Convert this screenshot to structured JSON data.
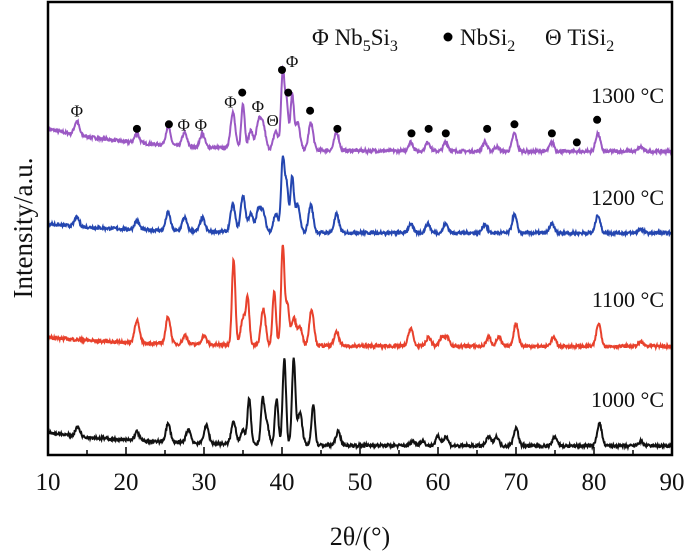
{
  "chart_data": {
    "type": "line",
    "title": "",
    "xlabel": "2θ/(°)",
    "ylabel": "Intensity/a.u.",
    "xlim": [
      10,
      90
    ],
    "ylim": [
      0,
      100
    ],
    "xticks": [
      "10",
      "20",
      "30",
      "40",
      "50",
      "60",
      "70",
      "80",
      "90"
    ],
    "grid": false,
    "legend": {
      "placement": "top-right",
      "entries": [
        {
          "symbol": "Φ",
          "label": "Nb5Si3",
          "base": "Nb",
          "sub1": "5",
          "mid": "Si",
          "sub2": "3"
        },
        {
          "symbol": "●",
          "label": "NbSi2",
          "base": "NbSi",
          "sub1": "2",
          "mid": "",
          "sub2": ""
        },
        {
          "symbol": "Θ",
          "label": "TiSi2",
          "base": "TiSi",
          "sub1": "2",
          "mid": "",
          "sub2": ""
        }
      ]
    },
    "series": [
      {
        "name": "1300 °C",
        "color": "#9b59c4",
        "offset": 67,
        "bg": 5,
        "peaks": [
          [
            13.7,
            3
          ],
          [
            21.4,
            2
          ],
          [
            25.4,
            4
          ],
          [
            27.5,
            3
          ],
          [
            29.8,
            3
          ],
          [
            33.7,
            8
          ],
          [
            35,
            10
          ],
          [
            36,
            4
          ],
          [
            37,
            6
          ],
          [
            37.6,
            5
          ],
          [
            39.2,
            4
          ],
          [
            40.1,
            17
          ],
          [
            40.6,
            10
          ],
          [
            41.3,
            12
          ],
          [
            42,
            6
          ],
          [
            43.7,
            6
          ],
          [
            47,
            4
          ],
          [
            56.5,
            2
          ],
          [
            58.7,
            2
          ],
          [
            61,
            2
          ],
          [
            66,
            2
          ],
          [
            67.5,
            1
          ],
          [
            69.8,
            4
          ],
          [
            74.6,
            2
          ],
          [
            80.5,
            4
          ],
          [
            86,
            1
          ]
        ]
      },
      {
        "name": "1200 °C",
        "color": "#2446b0",
        "offset": 49,
        "bg": 2,
        "peaks": [
          [
            13.7,
            2
          ],
          [
            21.4,
            2
          ],
          [
            25.4,
            4
          ],
          [
            27.5,
            3
          ],
          [
            29.8,
            3
          ],
          [
            33.7,
            6
          ],
          [
            35,
            8
          ],
          [
            36,
            4
          ],
          [
            37,
            5
          ],
          [
            37.6,
            4
          ],
          [
            39.2,
            4
          ],
          [
            40.1,
            16
          ],
          [
            40.6,
            10
          ],
          [
            41.3,
            12
          ],
          [
            42,
            6
          ],
          [
            43.7,
            6
          ],
          [
            47,
            4
          ],
          [
            56.5,
            2
          ],
          [
            58.7,
            2
          ],
          [
            61,
            2
          ],
          [
            66,
            2
          ],
          [
            69.8,
            4
          ],
          [
            74.6,
            2
          ],
          [
            80.5,
            4
          ],
          [
            86,
            1
          ]
        ]
      },
      {
        "name": "1100 °C",
        "color": "#e8412c",
        "offset": 24,
        "bg": 2,
        "peaks": [
          [
            21.4,
            5
          ],
          [
            25.4,
            6
          ],
          [
            27.6,
            2
          ],
          [
            30,
            2
          ],
          [
            33.8,
            19
          ],
          [
            35,
            6
          ],
          [
            35.6,
            10
          ],
          [
            37.6,
            8
          ],
          [
            39,
            12
          ],
          [
            40.1,
            22
          ],
          [
            40.7,
            9
          ],
          [
            41.5,
            6
          ],
          [
            42.3,
            4
          ],
          [
            43.8,
            8
          ],
          [
            47,
            3
          ],
          [
            56.5,
            4
          ],
          [
            58.8,
            2
          ],
          [
            60.5,
            2
          ],
          [
            61.2,
            2
          ],
          [
            66.5,
            2
          ],
          [
            67.8,
            2
          ],
          [
            70,
            5
          ],
          [
            74.8,
            2
          ],
          [
            80.6,
            5
          ],
          [
            86,
            1
          ]
        ]
      },
      {
        "name": "1000 °C",
        "color": "#111111",
        "offset": 2,
        "bg": 3,
        "peaks": [
          [
            13.8,
            2
          ],
          [
            21.4,
            2
          ],
          [
            25.4,
            4
          ],
          [
            28,
            3
          ],
          [
            30.3,
            4
          ],
          [
            33.8,
            5
          ],
          [
            35,
            3
          ],
          [
            35.8,
            10
          ],
          [
            37.5,
            9
          ],
          [
            38,
            5
          ],
          [
            39.3,
            10
          ],
          [
            40.3,
            19
          ],
          [
            41.5,
            19
          ],
          [
            42.3,
            7
          ],
          [
            44,
            9
          ],
          [
            47.2,
            3
          ],
          [
            56.8,
            1
          ],
          [
            58,
            1
          ],
          [
            60,
            2
          ],
          [
            61,
            2
          ],
          [
            66.5,
            2
          ],
          [
            67.5,
            2
          ],
          [
            70,
            4
          ],
          [
            75,
            2
          ],
          [
            80.7,
            5
          ],
          [
            86,
            1
          ]
        ]
      }
    ],
    "annotations": [
      {
        "symbol": "Φ",
        "x": 13.7,
        "y": 76
      },
      {
        "symbol": "●",
        "x": 21.4,
        "y": 72
      },
      {
        "symbol": "●",
        "x": 25.5,
        "y": 73
      },
      {
        "symbol": "Φ",
        "x": 27.4,
        "y": 73
      },
      {
        "symbol": "Φ",
        "x": 29.6,
        "y": 73
      },
      {
        "symbol": "Φ",
        "x": 33.4,
        "y": 78
      },
      {
        "symbol": "●",
        "x": 34.9,
        "y": 80
      },
      {
        "symbol": "Φ",
        "x": 36.9,
        "y": 77
      },
      {
        "symbol": "Θ",
        "x": 38.8,
        "y": 74
      },
      {
        "symbol": "●",
        "x": 40.0,
        "y": 85
      },
      {
        "symbol": "Φ",
        "x": 41.3,
        "y": 87
      },
      {
        "symbol": "●",
        "x": 40.8,
        "y": 80
      },
      {
        "symbol": "●",
        "x": 43.6,
        "y": 76
      },
      {
        "symbol": "●",
        "x": 47.1,
        "y": 72
      },
      {
        "symbol": "●",
        "x": 56.6,
        "y": 71
      },
      {
        "symbol": "●",
        "x": 58.8,
        "y": 72
      },
      {
        "symbol": "●",
        "x": 61.0,
        "y": 71
      },
      {
        "symbol": "●",
        "x": 66.3,
        "y": 72
      },
      {
        "symbol": "●",
        "x": 69.8,
        "y": 73
      },
      {
        "symbol": "●",
        "x": 74.6,
        "y": 71
      },
      {
        "symbol": "●",
        "x": 77.8,
        "y": 69
      },
      {
        "symbol": "●",
        "x": 80.4,
        "y": 74
      }
    ]
  }
}
